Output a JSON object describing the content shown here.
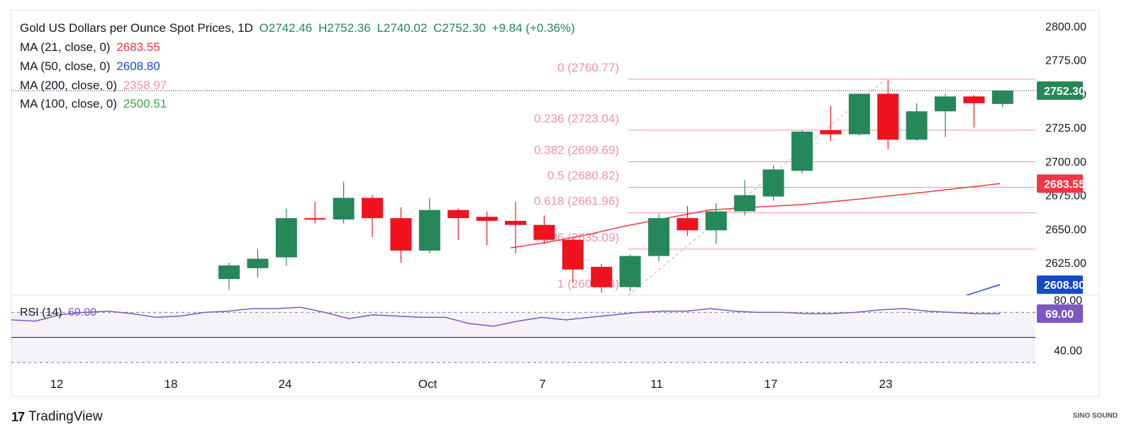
{
  "header": {
    "title": "Gold US Dollars per Ounce Spot Prices, 1D",
    "open": "O2742.46",
    "high": "H2752.36",
    "low": "L2740.02",
    "close": "C2752.30",
    "change": "+9.84 (+0.36%)"
  },
  "indicators": [
    {
      "label": "MA (21, close, 0)",
      "value": "2683.55",
      "color": "#f23645"
    },
    {
      "label": "MA (50, close, 0)",
      "value": "2608.80",
      "color": "#1848cc"
    },
    {
      "label": "MA (200, close, 0)",
      "value": "2358.97",
      "color": "#f48fb1"
    },
    {
      "label": "MA (100, close, 0)",
      "value": "2500.51",
      "color": "#43a047"
    }
  ],
  "rsi": {
    "label": "RSI (14)",
    "value": "69.00",
    "color": "#7e57c2"
  },
  "footer": {
    "brand": "TradingView",
    "watermark": "SINO SOUND"
  },
  "colors": {
    "up": "#26875a",
    "down": "#f0121f",
    "fib": "#f48fb1",
    "rsi": "#7e57c2"
  },
  "chart_data": [
    {
      "type": "candlestick",
      "title": "Gold US Dollars per Ounce Spot Prices, 1D",
      "x_ticks": [
        "12",
        "18",
        "24",
        "Oct",
        "7",
        "11",
        "17",
        "23"
      ],
      "y_ticks": [
        "2625.00",
        "2650.00",
        "2675.00",
        "2700.00",
        "2725.00",
        "2750.00",
        "2775.00",
        "2800.00"
      ],
      "ylim": [
        2601,
        2812
      ],
      "candles": [
        {
          "o": 2613,
          "h": 2625,
          "l": 2605,
          "c": 2623
        },
        {
          "o": 2621,
          "h": 2635,
          "l": 2614,
          "c": 2628
        },
        {
          "o": 2629,
          "h": 2665,
          "l": 2623,
          "c": 2658
        },
        {
          "o": 2658,
          "h": 2670,
          "l": 2654,
          "c": 2657
        },
        {
          "o": 2657,
          "h": 2685,
          "l": 2654,
          "c": 2673
        },
        {
          "o": 2673,
          "h": 2675,
          "l": 2644,
          "c": 2658
        },
        {
          "o": 2658,
          "h": 2666,
          "l": 2625,
          "c": 2634
        },
        {
          "o": 2634,
          "h": 2673,
          "l": 2632,
          "c": 2664
        },
        {
          "o": 2664,
          "h": 2665,
          "l": 2642,
          "c": 2658
        },
        {
          "o": 2659,
          "h": 2663,
          "l": 2638,
          "c": 2656
        },
        {
          "o": 2656,
          "h": 2670,
          "l": 2632,
          "c": 2653
        },
        {
          "o": 2653,
          "h": 2660,
          "l": 2639,
          "c": 2642
        },
        {
          "o": 2642,
          "h": 2644,
          "l": 2610,
          "c": 2620
        },
        {
          "o": 2622,
          "h": 2624,
          "l": 2603,
          "c": 2607
        },
        {
          "o": 2607,
          "h": 2631,
          "l": 2604,
          "c": 2630
        },
        {
          "o": 2630,
          "h": 2661,
          "l": 2626,
          "c": 2658
        },
        {
          "o": 2658,
          "h": 2667,
          "l": 2645,
          "c": 2649
        },
        {
          "o": 2649,
          "h": 2669,
          "l": 2639,
          "c": 2663
        },
        {
          "o": 2663,
          "h": 2686,
          "l": 2660,
          "c": 2675
        },
        {
          "o": 2674,
          "h": 2697,
          "l": 2671,
          "c": 2694
        },
        {
          "o": 2693,
          "h": 2723,
          "l": 2691,
          "c": 2722
        },
        {
          "o": 2723,
          "h": 2741,
          "l": 2715,
          "c": 2720
        },
        {
          "o": 2720,
          "h": 2750,
          "l": 2719,
          "c": 2750
        },
        {
          "o": 2750,
          "h": 2760,
          "l": 2709,
          "c": 2716
        },
        {
          "o": 2716,
          "h": 2743,
          "l": 2715,
          "c": 2737
        },
        {
          "o": 2737,
          "h": 2750,
          "l": 2718,
          "c": 2748
        },
        {
          "o": 2748,
          "h": 2749,
          "l": 2725,
          "c": 2743
        },
        {
          "o": 2742.46,
          "h": 2752.36,
          "l": 2740.02,
          "c": 2752.3
        }
      ],
      "ma21": [
        2636,
        2640,
        2646,
        2652,
        2658,
        2664,
        2666,
        2668,
        2672,
        2677,
        2683.55
      ],
      "ma50": [
        2597,
        2603,
        2608.8
      ],
      "fibonacci": [
        {
          "label": "0 (2760.77)",
          "value": 2760.77
        },
        {
          "label": "0.236 (2723.04)",
          "value": 2723.04
        },
        {
          "label": "0.382 (2699.69)",
          "value": 2699.69
        },
        {
          "label": "0.5 (2680.82)",
          "value": 2680.82
        },
        {
          "label": "0.618 (2661.96)",
          "value": 2661.96
        },
        {
          "label": "0.786 (2635.09)",
          "value": 2635.09
        },
        {
          "label": "1 (2600.83)",
          "value": 2600.83
        }
      ],
      "price_tags": [
        {
          "value": 2752.3,
          "label": "2752.30",
          "color": "#26875a"
        },
        {
          "value": 2683.55,
          "label": "2683.55",
          "color": "#f23645"
        },
        {
          "value": 2608.8,
          "label": "2608.80",
          "color": "#1848cc"
        }
      ]
    },
    {
      "type": "line",
      "title": "RSI (14)",
      "y_ticks": [
        "40.00",
        "80.00"
      ],
      "ylim": [
        30,
        82
      ],
      "levels": [
        30,
        70
      ],
      "values": [
        64,
        63,
        68,
        70,
        71,
        69,
        66,
        67,
        70,
        71,
        73,
        73,
        74,
        70,
        65,
        68,
        67,
        66,
        66,
        61,
        59,
        63,
        66,
        64,
        66,
        68,
        70,
        71,
        71,
        73,
        71,
        70,
        70,
        69,
        69,
        70,
        72,
        73,
        71,
        70,
        69,
        69
      ]
    }
  ]
}
